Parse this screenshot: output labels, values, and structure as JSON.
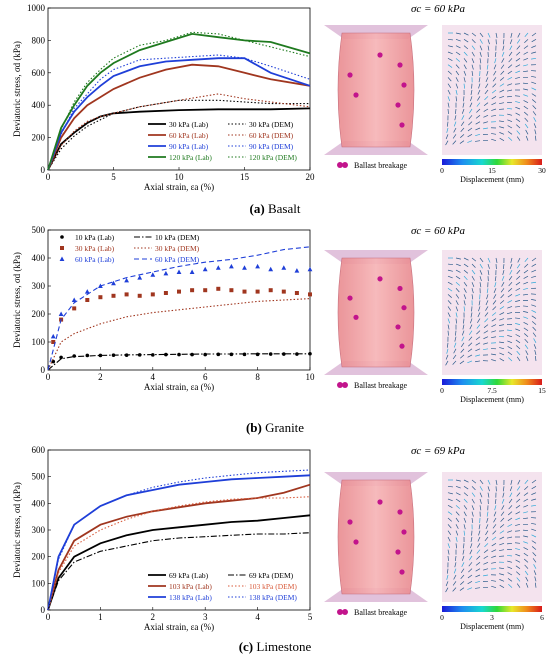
{
  "chart_data": [
    {
      "type": "line",
      "panel": "(a)",
      "caption": "Basalt",
      "sigma_label": "σc = 60 kPa",
      "xlabel": "Axial strain, εa (%)",
      "ylabel": "Deviatoric stress, σd (kPa)",
      "xlim": [
        0,
        20
      ],
      "ylim": [
        0,
        1000
      ],
      "xticks": [
        0,
        5,
        10,
        15,
        20
      ],
      "yticks": [
        0,
        200,
        400,
        600,
        800,
        1000
      ],
      "legend_placement": "bottom-right",
      "series": [
        {
          "name": "30 kPa (Lab)",
          "color": "#000000",
          "style": "solid",
          "x": [
            0,
            1,
            2,
            3,
            4,
            5,
            7,
            10,
            13,
            15,
            17,
            20
          ],
          "y": [
            0,
            160,
            230,
            290,
            330,
            350,
            360,
            370,
            375,
            375,
            375,
            380
          ]
        },
        {
          "name": "60 kPa (Lab)",
          "color": "#a0361f",
          "style": "solid",
          "x": [
            0,
            1,
            2,
            3,
            4,
            5,
            7,
            9,
            11,
            13,
            15,
            17,
            20
          ],
          "y": [
            0,
            200,
            320,
            400,
            450,
            500,
            570,
            620,
            650,
            640,
            600,
            560,
            520
          ]
        },
        {
          "name": "90 kPa (Lab)",
          "color": "#1f3fd8",
          "style": "solid",
          "x": [
            0,
            1,
            2,
            3,
            4,
            5,
            7,
            9,
            11,
            13,
            15,
            17,
            20
          ],
          "y": [
            0,
            230,
            360,
            450,
            520,
            580,
            640,
            670,
            680,
            690,
            690,
            600,
            520
          ]
        },
        {
          "name": "120 kPa (Lab)",
          "color": "#1f7a1f",
          "style": "solid",
          "x": [
            0,
            1,
            2,
            3,
            4,
            5,
            7,
            9,
            11,
            13,
            15,
            17,
            20
          ],
          "y": [
            0,
            260,
            400,
            520,
            600,
            660,
            740,
            790,
            840,
            820,
            800,
            790,
            720
          ]
        },
        {
          "name": "30 kPa (DEM)",
          "color": "#000000",
          "style": "dotted",
          "x": [
            0,
            1,
            2,
            3,
            4,
            5,
            7,
            10,
            13,
            15,
            17,
            20
          ],
          "y": [
            0,
            130,
            210,
            270,
            310,
            350,
            390,
            430,
            430,
            420,
            410,
            410
          ]
        },
        {
          "name": "60 kPa (DEM)",
          "color": "#a0361f",
          "style": "dotted",
          "x": [
            0,
            1,
            2,
            3,
            4,
            5,
            7,
            10,
            13,
            15,
            17,
            20
          ],
          "y": [
            0,
            150,
            240,
            300,
            330,
            350,
            390,
            430,
            470,
            440,
            420,
            390
          ]
        },
        {
          "name": "90 kPa (DEM)",
          "color": "#1f3fd8",
          "style": "dotted",
          "x": [
            0,
            1,
            2,
            3,
            4,
            5,
            7,
            9,
            11,
            13,
            15,
            17,
            20
          ],
          "y": [
            0,
            220,
            380,
            470,
            560,
            620,
            680,
            690,
            700,
            710,
            690,
            640,
            560
          ]
        },
        {
          "name": "120 kPa (DEM)",
          "color": "#1f7a1f",
          "style": "dotted",
          "x": [
            0,
            1,
            2,
            3,
            4,
            5,
            7,
            9,
            11,
            13,
            15,
            17,
            20
          ],
          "y": [
            0,
            250,
            420,
            540,
            620,
            690,
            770,
            800,
            850,
            840,
            800,
            760,
            700
          ]
        }
      ],
      "images": {
        "breakage_label": "Ballast breakage",
        "colorbar_label": "Displacement (mm)",
        "colorbar_ticks": [
          "0",
          "15",
          "30"
        ]
      }
    },
    {
      "type": "scatter",
      "panel": "(b)",
      "caption": "Granite",
      "sigma_label": "σc = 60 kPa",
      "xlabel": "Axial strain, εa (%)",
      "ylabel": "Deviatoric stress, σd (kPa)",
      "xlim": [
        0,
        10
      ],
      "ylim": [
        0,
        500
      ],
      "xticks": [
        0,
        2,
        4,
        6,
        8,
        10
      ],
      "yticks": [
        0,
        100,
        200,
        300,
        400,
        500
      ],
      "legend_placement": "top-left",
      "series": [
        {
          "name": "10 kPa (Lab)",
          "color": "#000000",
          "marker": "circle",
          "x": [
            0.2,
            0.5,
            1,
            1.5,
            2,
            2.5,
            3,
            3.5,
            4,
            4.5,
            5,
            5.5,
            6,
            6.5,
            7,
            7.5,
            8,
            8.5,
            9,
            9.5,
            10
          ],
          "y": [
            30,
            45,
            50,
            52,
            52,
            53,
            53,
            54,
            54,
            55,
            55,
            55,
            55,
            56,
            56,
            56,
            56,
            57,
            57,
            57,
            58
          ]
        },
        {
          "name": "30 kPa (Lab)",
          "color": "#a0361f",
          "marker": "square",
          "x": [
            0.2,
            0.5,
            1,
            1.5,
            2,
            2.5,
            3,
            3.5,
            4,
            4.5,
            5,
            5.5,
            6,
            6.5,
            7,
            7.5,
            8,
            8.5,
            9,
            9.5,
            10
          ],
          "y": [
            100,
            180,
            220,
            250,
            260,
            265,
            270,
            265,
            270,
            275,
            280,
            285,
            285,
            290,
            285,
            280,
            280,
            285,
            280,
            275,
            270
          ]
        },
        {
          "name": "60 kPa (Lab)",
          "color": "#1f3fd8",
          "marker": "triangle",
          "x": [
            0.2,
            0.5,
            1,
            1.5,
            2,
            2.5,
            3,
            3.5,
            4,
            4.5,
            5,
            5.5,
            6,
            6.5,
            7,
            7.5,
            8,
            8.5,
            9,
            9.5,
            10
          ],
          "y": [
            120,
            200,
            250,
            280,
            300,
            310,
            320,
            330,
            340,
            345,
            350,
            350,
            360,
            365,
            370,
            365,
            370,
            360,
            365,
            355,
            360
          ]
        },
        {
          "name": "10 kPa (DEM)",
          "color": "#000000",
          "style": "dashdot",
          "x": [
            0,
            0.5,
            1,
            2,
            3,
            4,
            5,
            6,
            7,
            8,
            9,
            10
          ],
          "y": [
            0,
            40,
            48,
            52,
            54,
            55,
            56,
            57,
            57,
            58,
            58,
            58
          ]
        },
        {
          "name": "30 kPa (DEM)",
          "color": "#a0361f",
          "style": "dotted",
          "x": [
            0,
            0.5,
            1,
            2,
            3,
            4,
            5,
            6,
            7,
            8,
            9,
            10
          ],
          "y": [
            0,
            100,
            130,
            165,
            190,
            205,
            215,
            225,
            235,
            245,
            250,
            255
          ]
        },
        {
          "name": "60 kPa (DEM)",
          "color": "#1f3fd8",
          "style": "dashed",
          "x": [
            0,
            0.5,
            1,
            2,
            3,
            4,
            5,
            6,
            7,
            8,
            9,
            10
          ],
          "y": [
            0,
            180,
            240,
            300,
            330,
            350,
            370,
            385,
            395,
            410,
            430,
            440
          ]
        }
      ],
      "images": {
        "breakage_label": "Ballast breakage",
        "colorbar_label": "Displacement (mm)",
        "colorbar_ticks": [
          "0",
          "7.5",
          "15"
        ]
      }
    },
    {
      "type": "line",
      "panel": "(c)",
      "caption": "Limestone",
      "sigma_label": "σc = 69 kPa",
      "xlabel": "Axial strain, εa (%)",
      "ylabel": "Deviatoric stress, σd (kPa)",
      "xlim": [
        0,
        5
      ],
      "ylim": [
        0,
        600
      ],
      "xticks": [
        0,
        1,
        2,
        3,
        4,
        5
      ],
      "yticks": [
        0,
        100,
        200,
        300,
        400,
        500,
        600
      ],
      "legend_placement": "bottom-right",
      "series": [
        {
          "name": "69 kPa (Lab)",
          "color": "#000000",
          "style": "solid",
          "x": [
            0,
            0.2,
            0.5,
            1,
            1.5,
            2,
            2.5,
            3,
            3.5,
            4,
            4.5,
            5
          ],
          "y": [
            0,
            120,
            200,
            250,
            280,
            300,
            310,
            320,
            330,
            335,
            345,
            355
          ]
        },
        {
          "name": "103 kPa (Lab)",
          "color": "#a0361f",
          "style": "solid",
          "x": [
            0,
            0.2,
            0.5,
            1,
            1.5,
            2,
            2.5,
            3,
            3.5,
            4,
            4.5,
            5
          ],
          "y": [
            0,
            150,
            260,
            320,
            350,
            370,
            385,
            400,
            410,
            420,
            440,
            470
          ]
        },
        {
          "name": "138 kPa (Lab)",
          "color": "#1f3fd8",
          "style": "solid",
          "x": [
            0,
            0.2,
            0.5,
            1,
            1.5,
            2,
            2.5,
            3,
            3.5,
            4,
            4.5,
            5
          ],
          "y": [
            0,
            200,
            320,
            390,
            430,
            450,
            470,
            480,
            490,
            495,
            500,
            505
          ]
        },
        {
          "name": "69 kPa (DEM)",
          "color": "#000000",
          "style": "dashdot",
          "x": [
            0,
            0.2,
            0.5,
            1,
            1.5,
            2,
            2.5,
            3,
            3.5,
            4,
            4.5,
            5
          ],
          "y": [
            0,
            110,
            180,
            220,
            240,
            260,
            270,
            275,
            280,
            285,
            285,
            290
          ]
        },
        {
          "name": "103 kPa (DEM)",
          "color": "#d85a3a",
          "style": "dotted",
          "x": [
            0,
            0.2,
            0.5,
            1,
            1.5,
            2,
            2.5,
            3,
            3.5,
            4,
            4.5,
            5
          ],
          "y": [
            0,
            140,
            240,
            300,
            340,
            370,
            390,
            405,
            415,
            420,
            420,
            425
          ]
        },
        {
          "name": "138 kPa (DEM)",
          "color": "#1f3fd8",
          "style": "dotted",
          "x": [
            0,
            0.2,
            0.5,
            1,
            1.5,
            2,
            2.5,
            3,
            3.5,
            4,
            4.5,
            5
          ],
          "y": [
            0,
            190,
            320,
            390,
            430,
            460,
            480,
            495,
            505,
            515,
            520,
            525
          ]
        }
      ],
      "images": {
        "breakage_label": "Ballast breakage",
        "colorbar_label": "Displacement (mm)",
        "colorbar_ticks": [
          "0",
          "3",
          "6"
        ]
      }
    }
  ]
}
